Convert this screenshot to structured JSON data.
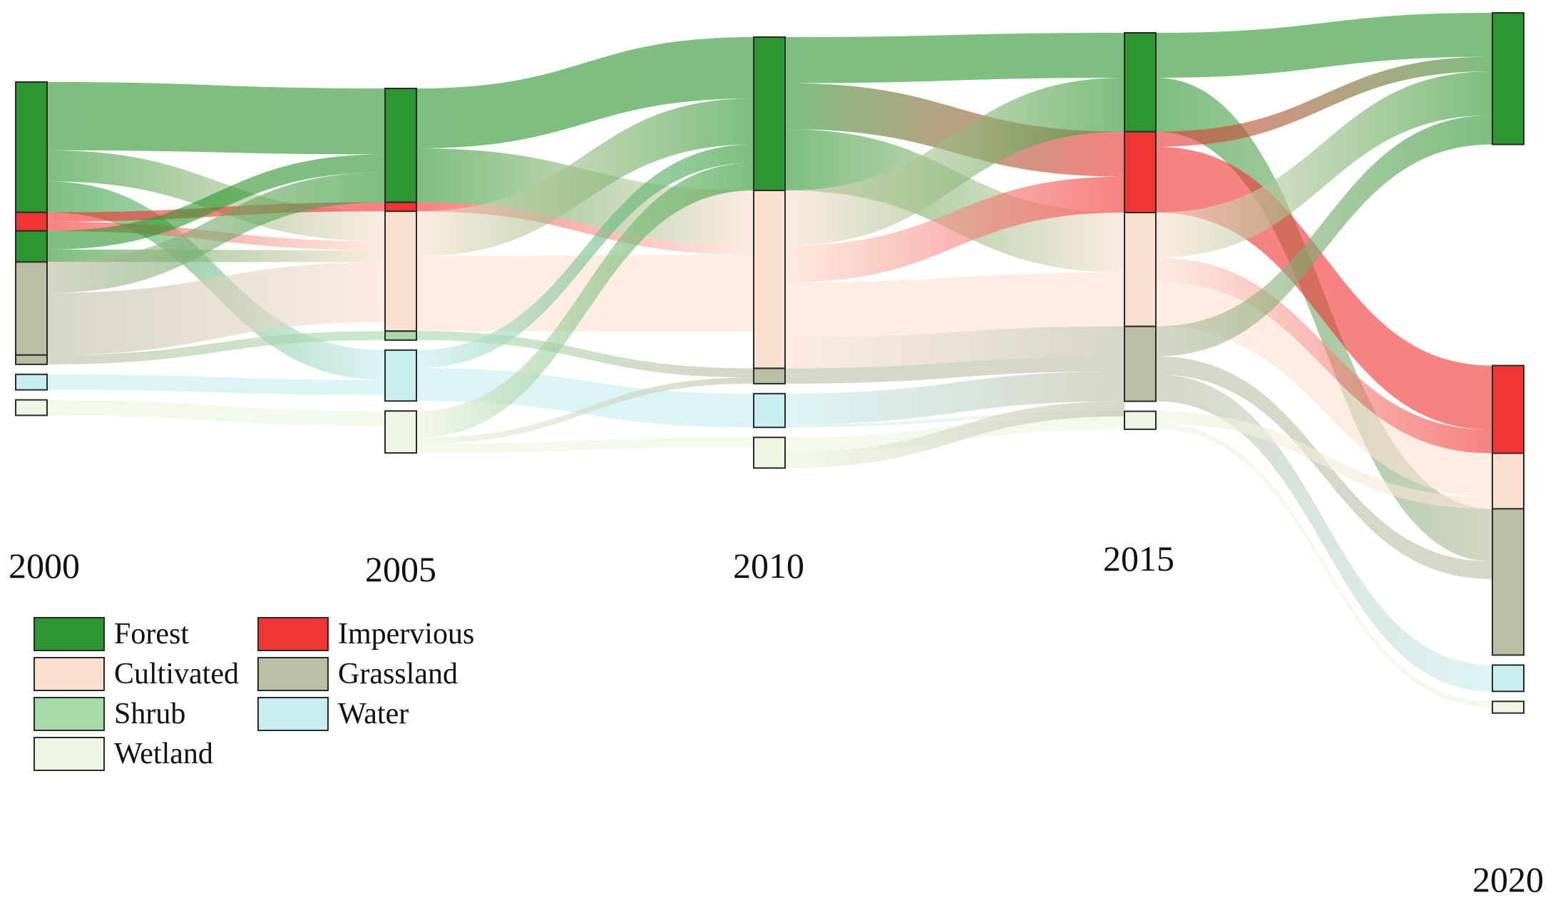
{
  "chart_data": {
    "type": "sankey",
    "title": "",
    "stages": [
      "2000",
      "2005",
      "2010",
      "2015",
      "2020"
    ],
    "legend": [
      {
        "key": "forest",
        "label": "Forest",
        "color": "#2e9631"
      },
      {
        "key": "impervious",
        "label": "Impervious",
        "color": "#f03535"
      },
      {
        "key": "cultivated",
        "label": "Cultivated",
        "color": "#fbe0d0"
      },
      {
        "key": "grassland",
        "label": "Grassland",
        "color": "#bcbea4"
      },
      {
        "key": "shrub",
        "label": "Shrub",
        "color": "#a6dba8"
      },
      {
        "key": "water",
        "label": "Water",
        "color": "#c8eef0"
      },
      {
        "key": "wetland",
        "label": "Wetland",
        "color": "#edf5e3"
      }
    ],
    "columns": [
      {
        "year": "2000",
        "segments": [
          {
            "cls": "forest",
            "value": 42
          },
          {
            "cls": "impervious",
            "value": 6
          },
          {
            "cls": "forest",
            "value": 10
          },
          {
            "cls": "grassland",
            "value": 30
          },
          {
            "cls": "grassland",
            "value": 3
          },
          {
            "cls": "water",
            "value": 5
          },
          {
            "cls": "wetland",
            "value": 5
          }
        ]
      },
      {
        "year": "2005",
        "segments": [
          {
            "cls": "forest",
            "value": 38
          },
          {
            "cls": "impervious",
            "value": 3
          },
          {
            "cls": "cultivated",
            "value": 40
          },
          {
            "cls": "shrub",
            "value": 3
          },
          {
            "cls": "water",
            "value": 17
          },
          {
            "cls": "wetland",
            "value": 14
          }
        ]
      },
      {
        "year": "2010",
        "segments": [
          {
            "cls": "forest",
            "value": 50
          },
          {
            "cls": "cultivated",
            "value": 58
          },
          {
            "cls": "grassland",
            "value": 5
          },
          {
            "cls": "water",
            "value": 11
          },
          {
            "cls": "wetland",
            "value": 10
          }
        ]
      },
      {
        "year": "2015",
        "segments": [
          {
            "cls": "forest",
            "value": 33
          },
          {
            "cls": "impervious",
            "value": 27
          },
          {
            "cls": "cultivated",
            "value": 38
          },
          {
            "cls": "grassland",
            "value": 25
          },
          {
            "cls": "wetland",
            "value": 6
          }
        ]
      },
      {
        "year": "2020",
        "segments": [
          {
            "cls": "forest",
            "value": 45
          },
          {
            "cls": "impervious",
            "value": 30
          },
          {
            "cls": "cultivated",
            "value": 19
          },
          {
            "cls": "grassland",
            "value": 50
          },
          {
            "cls": "water",
            "value": 9
          },
          {
            "cls": "wetland",
            "value": 4
          }
        ]
      }
    ],
    "flows": [
      {
        "from": [
          0,
          0
        ],
        "to": [
          1,
          0
        ],
        "cls": "forest",
        "value": 22
      },
      {
        "from": [
          0,
          0
        ],
        "to": [
          1,
          2
        ],
        "cls": "forest",
        "value": 10
      },
      {
        "from": [
          0,
          0
        ],
        "to": [
          1,
          4
        ],
        "cls": "forest",
        "value": 10
      },
      {
        "from": [
          0,
          1
        ],
        "to": [
          1,
          1
        ],
        "cls": "impervious",
        "value": 3
      },
      {
        "from": [
          0,
          1
        ],
        "to": [
          1,
          2
        ],
        "cls": "impervious",
        "value": 3
      },
      {
        "from": [
          0,
          2
        ],
        "to": [
          1,
          0
        ],
        "cls": "forest",
        "value": 6
      },
      {
        "from": [
          0,
          2
        ],
        "to": [
          1,
          2
        ],
        "cls": "forest",
        "value": 4
      },
      {
        "from": [
          0,
          3
        ],
        "to": [
          1,
          0
        ],
        "cls": "grassland",
        "value": 10
      },
      {
        "from": [
          0,
          3
        ],
        "to": [
          1,
          2
        ],
        "cls": "grassland",
        "value": 20
      },
      {
        "from": [
          0,
          4
        ],
        "to": [
          1,
          3
        ],
        "cls": "grassland",
        "value": 3
      },
      {
        "from": [
          0,
          5
        ],
        "to": [
          1,
          4
        ],
        "cls": "water",
        "value": 5
      },
      {
        "from": [
          0,
          6
        ],
        "to": [
          1,
          5
        ],
        "cls": "wetland",
        "value": 5
      },
      {
        "from": [
          1,
          0
        ],
        "to": [
          2,
          0
        ],
        "cls": "forest",
        "value": 20
      },
      {
        "from": [
          1,
          0
        ],
        "to": [
          2,
          1
        ],
        "cls": "forest",
        "value": 18
      },
      {
        "from": [
          1,
          1
        ],
        "to": [
          2,
          1
        ],
        "cls": "impervious",
        "value": 3
      },
      {
        "from": [
          1,
          2
        ],
        "to": [
          2,
          0
        ],
        "cls": "cultivated",
        "value": 15
      },
      {
        "from": [
          1,
          2
        ],
        "to": [
          2,
          1
        ],
        "cls": "cultivated",
        "value": 25
      },
      {
        "from": [
          1,
          3
        ],
        "to": [
          2,
          2
        ],
        "cls": "shrub",
        "value": 3
      },
      {
        "from": [
          1,
          4
        ],
        "to": [
          2,
          0
        ],
        "cls": "water",
        "value": 6
      },
      {
        "from": [
          1,
          4
        ],
        "to": [
          2,
          3
        ],
        "cls": "water",
        "value": 11
      },
      {
        "from": [
          1,
          5
        ],
        "to": [
          2,
          0
        ],
        "cls": "wetland",
        "value": 9
      },
      {
        "from": [
          1,
          5
        ],
        "to": [
          2,
          2
        ],
        "cls": "wetland",
        "value": 2
      },
      {
        "from": [
          1,
          5
        ],
        "to": [
          2,
          4
        ],
        "cls": "wetland",
        "value": 3
      },
      {
        "from": [
          2,
          0
        ],
        "to": [
          3,
          0
        ],
        "cls": "forest",
        "value": 15
      },
      {
        "from": [
          2,
          0
        ],
        "to": [
          3,
          1
        ],
        "cls": "forest",
        "value": 15
      },
      {
        "from": [
          2,
          0
        ],
        "to": [
          3,
          2
        ],
        "cls": "forest",
        "value": 20
      },
      {
        "from": [
          2,
          1
        ],
        "to": [
          3,
          0
        ],
        "cls": "cultivated",
        "value": 18
      },
      {
        "from": [
          2,
          1
        ],
        "to": [
          3,
          1
        ],
        "cls": "cultivated",
        "value": 12
      },
      {
        "from": [
          2,
          1
        ],
        "to": [
          3,
          2
        ],
        "cls": "cultivated",
        "value": 18
      },
      {
        "from": [
          2,
          1
        ],
        "to": [
          3,
          3
        ],
        "cls": "cultivated",
        "value": 10
      },
      {
        "from": [
          2,
          2
        ],
        "to": [
          3,
          3
        ],
        "cls": "grassland",
        "value": 5
      },
      {
        "from": [
          2,
          3
        ],
        "to": [
          3,
          3
        ],
        "cls": "water",
        "value": 10
      },
      {
        "from": [
          2,
          3
        ],
        "to": [
          3,
          4
        ],
        "cls": "water",
        "value": 1
      },
      {
        "from": [
          2,
          4
        ],
        "to": [
          3,
          4
        ],
        "cls": "wetland",
        "value": 5
      },
      {
        "from": [
          2,
          4
        ],
        "to": [
          3,
          3
        ],
        "cls": "wetland",
        "value": 5
      },
      {
        "from": [
          3,
          0
        ],
        "to": [
          4,
          0
        ],
        "cls": "forest",
        "value": 15
      },
      {
        "from": [
          3,
          0
        ],
        "to": [
          4,
          3
        ],
        "cls": "forest",
        "value": 18
      },
      {
        "from": [
          3,
          1
        ],
        "to": [
          4,
          0
        ],
        "cls": "impervious",
        "value": 5
      },
      {
        "from": [
          3,
          1
        ],
        "to": [
          4,
          1
        ],
        "cls": "impervious",
        "value": 22
      },
      {
        "from": [
          3,
          2
        ],
        "to": [
          4,
          0
        ],
        "cls": "cultivated",
        "value": 15
      },
      {
        "from": [
          3,
          2
        ],
        "to": [
          4,
          1
        ],
        "cls": "cultivated",
        "value": 8
      },
      {
        "from": [
          3,
          2
        ],
        "to": [
          4,
          2
        ],
        "cls": "cultivated",
        "value": 15
      },
      {
        "from": [
          3,
          3
        ],
        "to": [
          4,
          0
        ],
        "cls": "grassland",
        "value": 10
      },
      {
        "from": [
          3,
          3
        ],
        "to": [
          4,
          3
        ],
        "cls": "grassland",
        "value": 6
      },
      {
        "from": [
          3,
          3
        ],
        "to": [
          4,
          4
        ],
        "cls": "grassland",
        "value": 9
      },
      {
        "from": [
          3,
          4
        ],
        "to": [
          4,
          2
        ],
        "cls": "wetland",
        "value": 4
      },
      {
        "from": [
          3,
          4
        ],
        "to": [
          4,
          5
        ],
        "cls": "wetland",
        "value": 2
      }
    ]
  }
}
